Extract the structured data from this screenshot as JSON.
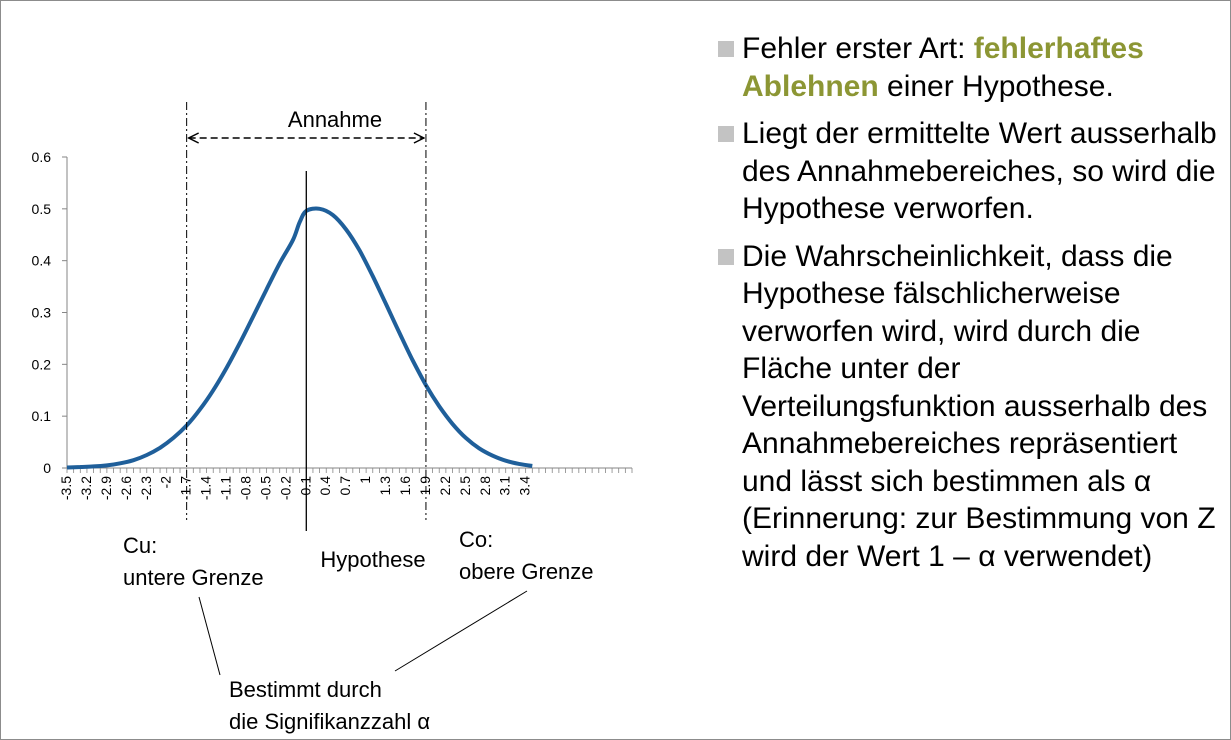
{
  "chart_data": {
    "type": "line",
    "x_ticks": [
      "-3.5",
      "-3.2",
      "-2.9",
      "-2.6",
      "-2.3",
      "-2",
      "-1.7",
      "-1.4",
      "-1.1",
      "-0.8",
      "-0.5",
      "-0.2",
      "0.1",
      "0.4",
      "0.7",
      "1",
      "1.3",
      "1.6",
      "1.9",
      "2.2",
      "2.5",
      "2.8",
      "3.1",
      "3.4"
    ],
    "y_ticks": [
      "0",
      "0.1",
      "0.2",
      "0.3",
      "0.4",
      "0.5",
      "0.6"
    ],
    "ylim": [
      0,
      0.6
    ],
    "xlim": [
      -3.5,
      5.0
    ],
    "series": [
      {
        "color": "#1f5f9a",
        "x": [
          -3.5,
          -3.3,
          -3.1,
          -2.9,
          -2.7,
          -2.5,
          -2.3,
          -2.1,
          -1.9,
          -1.7,
          -1.5,
          -1.3,
          -1.1,
          -0.9,
          -0.7,
          -0.5,
          -0.3,
          -0.1,
          0.0,
          0.1,
          0.3,
          0.5,
          0.7,
          0.9,
          1.1,
          1.3,
          1.5,
          1.7,
          1.9,
          2.1,
          2.3,
          2.5,
          2.7,
          2.9,
          3.1,
          3.3,
          3.5
        ],
        "y": [
          0.001,
          0.002,
          0.003,
          0.005,
          0.009,
          0.015,
          0.025,
          0.039,
          0.058,
          0.082,
          0.113,
          0.15,
          0.193,
          0.241,
          0.292,
          0.344,
          0.395,
          0.44,
          0.474,
          0.496,
          0.5,
          0.488,
          0.46,
          0.42,
          0.37,
          0.316,
          0.261,
          0.208,
          0.16,
          0.119,
          0.085,
          0.058,
          0.038,
          0.024,
          0.014,
          0.008,
          0.004
        ]
      }
    ],
    "grid": false,
    "legend": "none",
    "annotations": {
      "accept_label": "Annahme",
      "hypothesis_label": "Hypothese",
      "lower": [
        "Cu:",
        "untere Grenze"
      ],
      "upper": [
        "Co:",
        "obere Grenze"
      ],
      "alpha": [
        "Bestimmt durch",
        "die Signifikanzzahl α"
      ]
    },
    "markers": {
      "lower_limit": -1.7,
      "upper_limit": 1.9,
      "hypothesis": 0.1
    }
  },
  "bullets": [
    {
      "pre": "Fehler erster Art: ",
      "highlight": "fehlerhaftes Ablehnen",
      "post": " einer Hypothese."
    },
    {
      "pre": "Liegt der ermittelte Wert ausserhalb des Annahmebereiches, so wird die Hypothese verworfen.",
      "highlight": "",
      "post": ""
    },
    {
      "pre": "Die Wahrscheinlichkeit, dass die Hypothese fälschlicherweise verworfen wird, wird durch die Fläche unter der Verteilungsfunktion ausserhalb des Annahmebereiches repräsentiert und lässt sich bestimmen als α (Erinnerung: zur Bestimmung von Z wird der Wert 1 – α verwendet)",
      "highlight": "",
      "post": ""
    }
  ],
  "colors": {
    "curve": "#1f5f9a",
    "highlight": "#8c9634",
    "bullet_marker": "#c3c3c3"
  }
}
